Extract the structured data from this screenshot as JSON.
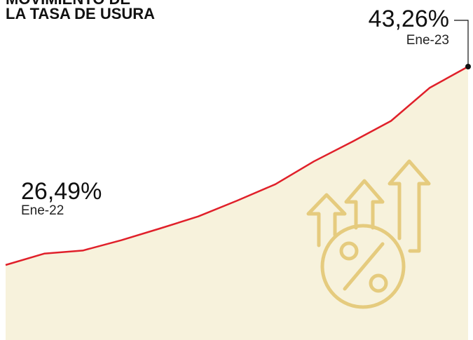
{
  "chart_data": {
    "type": "line",
    "title": [
      "MOVIMIENTO DE",
      "LA TASA DE USURA"
    ],
    "categories": [
      "Ene-22",
      null,
      null,
      null,
      null,
      null,
      null,
      null,
      null,
      null,
      null,
      null,
      "Ene-23"
    ],
    "values": [
      26.49,
      27.45,
      27.71,
      28.58,
      29.57,
      30.6,
      31.92,
      33.32,
      35.25,
      36.92,
      38.67,
      41.46,
      43.26
    ],
    "value_labels": [
      "26,49%",
      null,
      null,
      null,
      null,
      null,
      null,
      null,
      null,
      null,
      null,
      null,
      "43,26%"
    ],
    "color": "#e0202a",
    "area_color": "#f7f2dc",
    "ylim": [
      20.15,
      48.89
    ]
  }
}
